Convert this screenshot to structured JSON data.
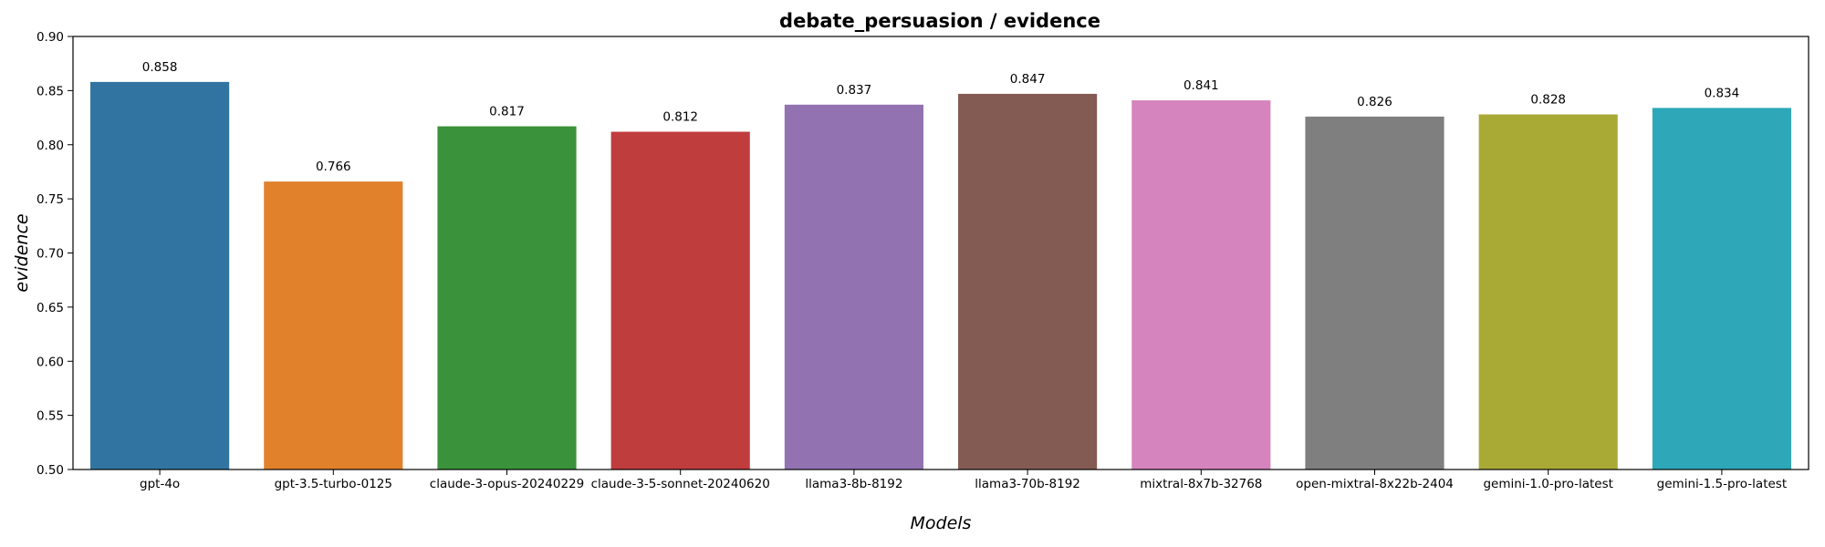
{
  "chart_data": {
    "type": "bar",
    "title": "debate_persuasion / evidence",
    "xlabel": "Models",
    "ylabel": "evidence",
    "ylim": [
      0.5,
      0.9
    ],
    "yticks": [
      "0.50",
      "0.55",
      "0.60",
      "0.65",
      "0.70",
      "0.75",
      "0.80",
      "0.85",
      "0.90"
    ],
    "grid": false,
    "categories": [
      "gpt-4o",
      "gpt-3.5-turbo-0125",
      "claude-3-opus-20240229",
      "claude-3-5-sonnet-20240620",
      "llama3-8b-8192",
      "llama3-70b-8192",
      "mixtral-8x7b-32768",
      "open-mixtral-8x22b-2404",
      "gemini-1.0-pro-latest",
      "gemini-1.5-pro-latest"
    ],
    "values": [
      0.858,
      0.766,
      0.817,
      0.812,
      0.837,
      0.847,
      0.841,
      0.826,
      0.828,
      0.834
    ],
    "value_labels": [
      "0.858",
      "0.766",
      "0.817",
      "0.812",
      "0.837",
      "0.847",
      "0.841",
      "0.826",
      "0.828",
      "0.834"
    ],
    "colors": [
      "#3274a1",
      "#e1812c",
      "#3a923a",
      "#c03d3e",
      "#9372b2",
      "#845b53",
      "#d684bd",
      "#7f7f7f",
      "#a9aa35",
      "#2ea8b8"
    ]
  }
}
